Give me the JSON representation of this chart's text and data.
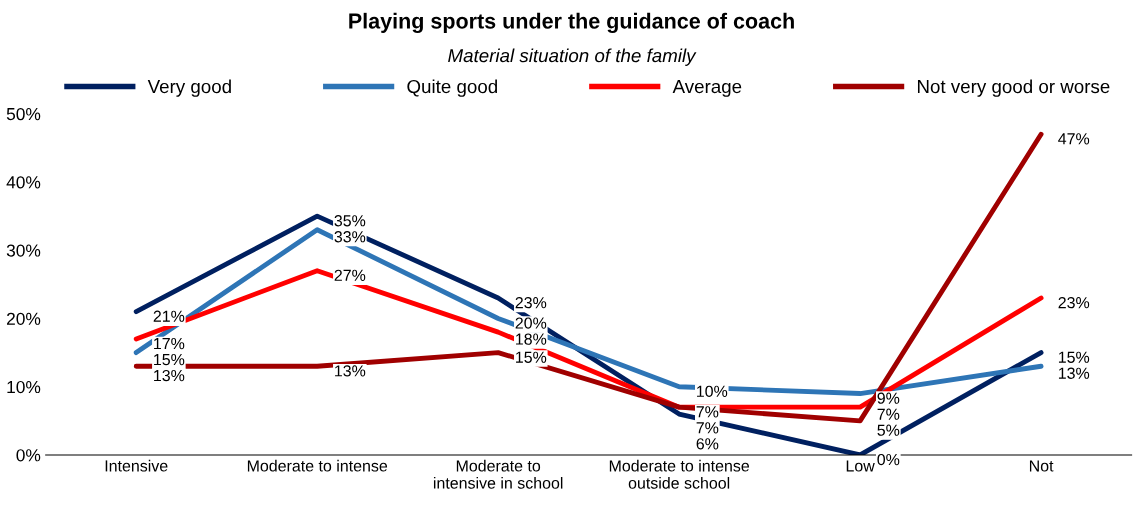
{
  "chart_data": {
    "type": "line",
    "title": "Playing sports under the guidance of coach",
    "subtitle": "Material situation of the family",
    "categories": [
      "Intensive",
      "Moderate to intense",
      "Moderate to\nintensive in school",
      "Moderate to intense\noutside school",
      "Low",
      "Not"
    ],
    "series": [
      {
        "name": "Very good",
        "color": "#002060",
        "values": [
          21,
          35,
          23,
          6,
          0,
          15
        ],
        "value_labels": [
          "21%",
          "35%",
          "23%",
          "6%",
          "0%",
          "15%"
        ]
      },
      {
        "name": "Quite good",
        "color": "#2e75b6",
        "values": [
          15,
          33,
          20,
          10,
          9,
          13
        ],
        "value_labels": [
          "15%",
          "33%",
          "20%",
          "10%",
          "9%",
          "13%"
        ]
      },
      {
        "name": "Average",
        "color": "#ff0000",
        "values": [
          17,
          27,
          18,
          7,
          7,
          23
        ],
        "value_labels": [
          "17%",
          "27%",
          "18%",
          "7%",
          "7%",
          "23%"
        ]
      },
      {
        "name": "Not very good or worse",
        "color": "#a00000",
        "values": [
          13,
          13,
          15,
          7,
          5,
          47
        ],
        "value_labels": [
          "13%",
          "13%",
          "15%",
          "7%",
          "5%",
          "47%"
        ]
      }
    ],
    "ylim": [
      0,
      50
    ],
    "yticks": [
      {
        "value": 0,
        "label": "0%"
      },
      {
        "value": 10,
        "label": "10%"
      },
      {
        "value": 20,
        "label": "20%"
      },
      {
        "value": 30,
        "label": "30%"
      },
      {
        "value": 40,
        "label": "40%"
      },
      {
        "value": 50,
        "label": "50%"
      }
    ],
    "grid": false,
    "legend": "top",
    "marker": "none",
    "line_style": "solid"
  }
}
